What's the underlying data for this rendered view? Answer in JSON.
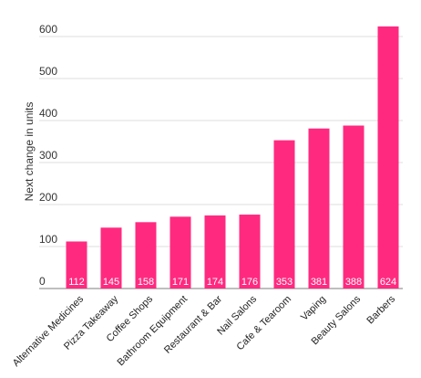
{
  "chart_data": {
    "type": "bar",
    "ylabel": "Next change in units",
    "xlabel": "",
    "ylim": [
      0,
      650
    ],
    "yticks": [
      0,
      100,
      200,
      300,
      400,
      500,
      600
    ],
    "grid": true,
    "categories": [
      "Alternative Medicines",
      "Pizza Takeaway",
      "Coffee Shops",
      "Bathroom Equipment",
      "Restaurant & Bar",
      "Nail Salons",
      "Cafe & Tearoom",
      "Vaping",
      "Beauty Salons",
      "Barbers"
    ],
    "values": [
      112,
      145,
      158,
      171,
      174,
      176,
      353,
      381,
      388,
      624
    ],
    "bar_color": "#ff2a7f",
    "grid_color": "#dddddd"
  }
}
